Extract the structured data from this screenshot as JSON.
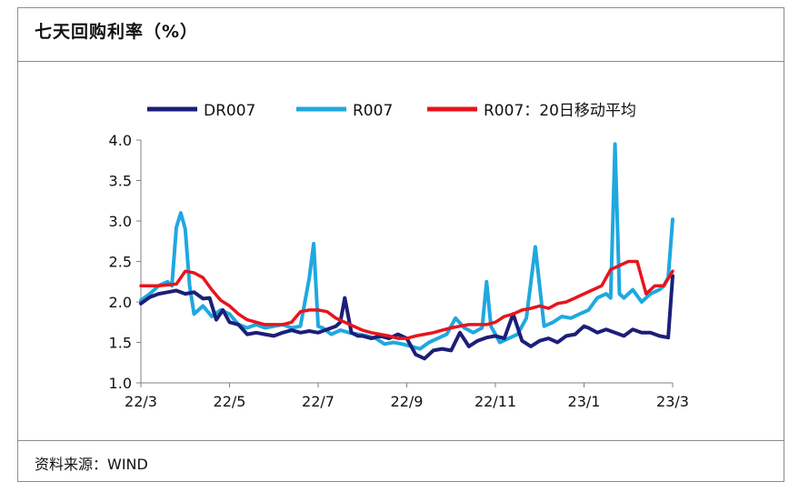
{
  "header": {
    "title": "七天回购利率（%）"
  },
  "footer": {
    "source": "资料来源：WIND"
  },
  "chart_data": {
    "type": "line",
    "title": "七天回购利率（%）",
    "xlabel": "",
    "ylabel": "",
    "ylim": [
      1.0,
      4.0
    ],
    "yticks": [
      "4.0",
      "3.5",
      "3.0",
      "2.5",
      "2.0",
      "1.5",
      "1.0"
    ],
    "ytick_values": [
      4.0,
      3.5,
      3.0,
      2.5,
      2.0,
      1.5,
      1.0
    ],
    "xticks": [
      "22/3",
      "22/5",
      "22/7",
      "22/9",
      "22/11",
      "23/1",
      "23/3"
    ],
    "x_range": [
      0,
      12
    ],
    "legend_position": "top",
    "grid": false,
    "series": [
      {
        "name": "DR007",
        "color": "#1c1f78",
        "x": [
          0,
          0.2,
          0.4,
          0.6,
          0.8,
          1.0,
          1.2,
          1.4,
          1.55,
          1.7,
          1.85,
          2.0,
          2.2,
          2.4,
          2.6,
          2.8,
          3.0,
          3.2,
          3.4,
          3.6,
          3.8,
          4.0,
          4.2,
          4.4,
          4.5,
          4.6,
          4.75,
          4.9,
          5.0,
          5.2,
          5.4,
          5.6,
          5.8,
          6.0,
          6.2,
          6.4,
          6.6,
          6.8,
          7.0,
          7.2,
          7.4,
          7.6,
          7.8,
          8.0,
          8.2,
          8.4,
          8.6,
          8.8,
          9.0,
          9.2,
          9.4,
          9.6,
          9.8,
          9.9,
          10.0,
          10.1,
          10.3,
          10.5,
          10.7,
          10.9,
          11.1,
          11.3,
          11.5,
          11.7,
          11.9,
          12.0
        ],
        "y": [
          1.98,
          2.06,
          2.1,
          2.12,
          2.14,
          2.1,
          2.12,
          2.04,
          2.05,
          1.78,
          1.9,
          1.75,
          1.72,
          1.6,
          1.62,
          1.6,
          1.58,
          1.62,
          1.65,
          1.62,
          1.64,
          1.62,
          1.66,
          1.7,
          1.75,
          2.05,
          1.62,
          1.58,
          1.58,
          1.55,
          1.58,
          1.55,
          1.6,
          1.55,
          1.35,
          1.3,
          1.4,
          1.42,
          1.4,
          1.62,
          1.45,
          1.52,
          1.56,
          1.58,
          1.55,
          1.85,
          1.52,
          1.45,
          1.52,
          1.55,
          1.5,
          1.58,
          1.6,
          1.65,
          1.7,
          1.68,
          1.62,
          1.66,
          1.62,
          1.58,
          1.66,
          1.62,
          1.62,
          1.58,
          1.56,
          2.32
        ]
      },
      {
        "name": "R007",
        "color": "#1fa8e0",
        "x": [
          0,
          0.2,
          0.4,
          0.6,
          0.7,
          0.8,
          0.9,
          1.0,
          1.1,
          1.2,
          1.4,
          1.6,
          1.8,
          2.0,
          2.2,
          2.4,
          2.6,
          2.8,
          3.0,
          3.2,
          3.4,
          3.6,
          3.8,
          3.9,
          4.0,
          4.1,
          4.3,
          4.5,
          4.7,
          4.9,
          5.1,
          5.3,
          5.5,
          5.7,
          5.9,
          6.1,
          6.3,
          6.5,
          6.7,
          6.9,
          7.1,
          7.3,
          7.5,
          7.7,
          7.8,
          7.9,
          8.1,
          8.3,
          8.5,
          8.7,
          8.9,
          9.1,
          9.3,
          9.5,
          9.7,
          9.9,
          10.1,
          10.3,
          10.5,
          10.6,
          10.7,
          10.8,
          10.9,
          11.1,
          11.3,
          11.5,
          11.7,
          11.8,
          11.9,
          12.0
        ],
        "y": [
          2.02,
          2.1,
          2.2,
          2.25,
          2.2,
          2.92,
          3.1,
          2.9,
          2.2,
          1.85,
          1.95,
          1.82,
          1.9,
          1.85,
          1.72,
          1.68,
          1.72,
          1.68,
          1.7,
          1.72,
          1.68,
          1.7,
          2.3,
          2.72,
          1.7,
          1.68,
          1.6,
          1.65,
          1.62,
          1.6,
          1.58,
          1.55,
          1.48,
          1.5,
          1.48,
          1.45,
          1.42,
          1.5,
          1.55,
          1.6,
          1.8,
          1.68,
          1.62,
          1.68,
          2.25,
          1.7,
          1.5,
          1.55,
          1.6,
          1.8,
          2.68,
          1.7,
          1.75,
          1.82,
          1.8,
          1.85,
          1.9,
          2.05,
          2.1,
          2.05,
          3.95,
          2.1,
          2.05,
          2.15,
          2.0,
          2.1,
          2.15,
          2.2,
          2.3,
          3.02
        ]
      },
      {
        "name": "R007：20日移动平均",
        "color": "#e8141c",
        "x": [
          0,
          0.4,
          0.8,
          1.0,
          1.2,
          1.4,
          1.6,
          1.8,
          2.0,
          2.2,
          2.4,
          2.6,
          2.8,
          3.0,
          3.2,
          3.4,
          3.6,
          3.8,
          4.0,
          4.2,
          4.4,
          4.6,
          4.8,
          5.0,
          5.2,
          5.4,
          5.6,
          5.8,
          6.0,
          6.2,
          6.4,
          6.6,
          6.8,
          7.0,
          7.2,
          7.4,
          7.6,
          7.8,
          8.0,
          8.2,
          8.4,
          8.6,
          8.8,
          9.0,
          9.2,
          9.4,
          9.6,
          9.8,
          10.0,
          10.2,
          10.4,
          10.6,
          10.8,
          11.0,
          11.2,
          11.4,
          11.6,
          11.8,
          12.0
        ],
        "y": [
          2.2,
          2.2,
          2.22,
          2.38,
          2.36,
          2.3,
          2.15,
          2.02,
          1.95,
          1.85,
          1.78,
          1.75,
          1.72,
          1.72,
          1.72,
          1.75,
          1.88,
          1.9,
          1.9,
          1.88,
          1.8,
          1.75,
          1.7,
          1.65,
          1.62,
          1.6,
          1.58,
          1.55,
          1.55,
          1.58,
          1.6,
          1.62,
          1.65,
          1.68,
          1.7,
          1.72,
          1.72,
          1.72,
          1.75,
          1.82,
          1.85,
          1.9,
          1.92,
          1.95,
          1.92,
          1.98,
          2.0,
          2.05,
          2.1,
          2.15,
          2.2,
          2.4,
          2.45,
          2.5,
          2.5,
          2.1,
          2.2,
          2.2,
          2.38
        ]
      }
    ]
  }
}
